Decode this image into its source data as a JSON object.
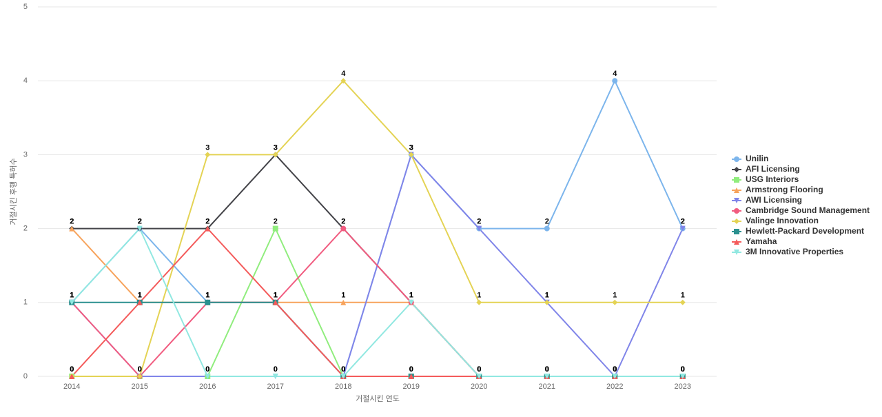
{
  "chart_data": {
    "type": "line",
    "x_label": "거절시킨 연도",
    "y_label": "거절시킨 후행 특허수",
    "categories": [
      "2014",
      "2015",
      "2016",
      "2017",
      "2018",
      "2019",
      "2020",
      "2021",
      "2022",
      "2023"
    ],
    "ylim": [
      0,
      5
    ],
    "yticks": [
      0,
      1,
      2,
      3,
      4,
      5
    ],
    "grid": true,
    "legend": "right",
    "series": [
      {
        "name": "Unilin",
        "color": "#7cb5ec",
        "marker": "circle",
        "values": [
          1,
          2,
          1,
          1,
          0,
          3,
          2,
          2,
          4,
          2
        ]
      },
      {
        "name": "AFI Licensing",
        "color": "#434348",
        "marker": "diamond",
        "values": [
          2,
          2,
          2,
          3,
          2,
          1,
          0,
          0,
          0,
          0
        ]
      },
      {
        "name": "USG Interiors",
        "color": "#90ed7d",
        "marker": "square",
        "values": [
          0,
          0,
          0,
          2,
          0,
          0,
          0,
          0,
          0,
          0
        ]
      },
      {
        "name": "Armstrong Flooring",
        "color": "#f7a35c",
        "marker": "triangle",
        "values": [
          2,
          1,
          1,
          1,
          1,
          1,
          0,
          0,
          0,
          0
        ]
      },
      {
        "name": "AWI Licensing",
        "color": "#8085e9",
        "marker": "triangle-down",
        "values": [
          1,
          0,
          0,
          0,
          0,
          3,
          2,
          1,
          0,
          2
        ]
      },
      {
        "name": "Cambridge Sound Management",
        "color": "#f15c80",
        "marker": "circle",
        "values": [
          1,
          0,
          1,
          1,
          2,
          1,
          0,
          0,
          0,
          0
        ]
      },
      {
        "name": "Valinge Innovation",
        "color": "#e4d354",
        "marker": "diamond",
        "values": [
          0,
          0,
          3,
          3,
          4,
          3,
          1,
          1,
          1,
          1
        ]
      },
      {
        "name": "Hewlett-Packard Development",
        "color": "#2b908f",
        "marker": "square",
        "values": [
          1,
          1,
          1,
          1,
          0,
          0,
          0,
          0,
          0,
          0
        ]
      },
      {
        "name": "Yamaha",
        "color": "#f45b5b",
        "marker": "triangle",
        "values": [
          0,
          1,
          2,
          1,
          0,
          0,
          0,
          0,
          0,
          0
        ]
      },
      {
        "name": "3M Innovative Properties",
        "color": "#91e8e1",
        "marker": "triangle-down",
        "values": [
          1,
          2,
          0,
          0,
          0,
          1,
          0,
          0,
          0,
          0
        ]
      }
    ]
  }
}
